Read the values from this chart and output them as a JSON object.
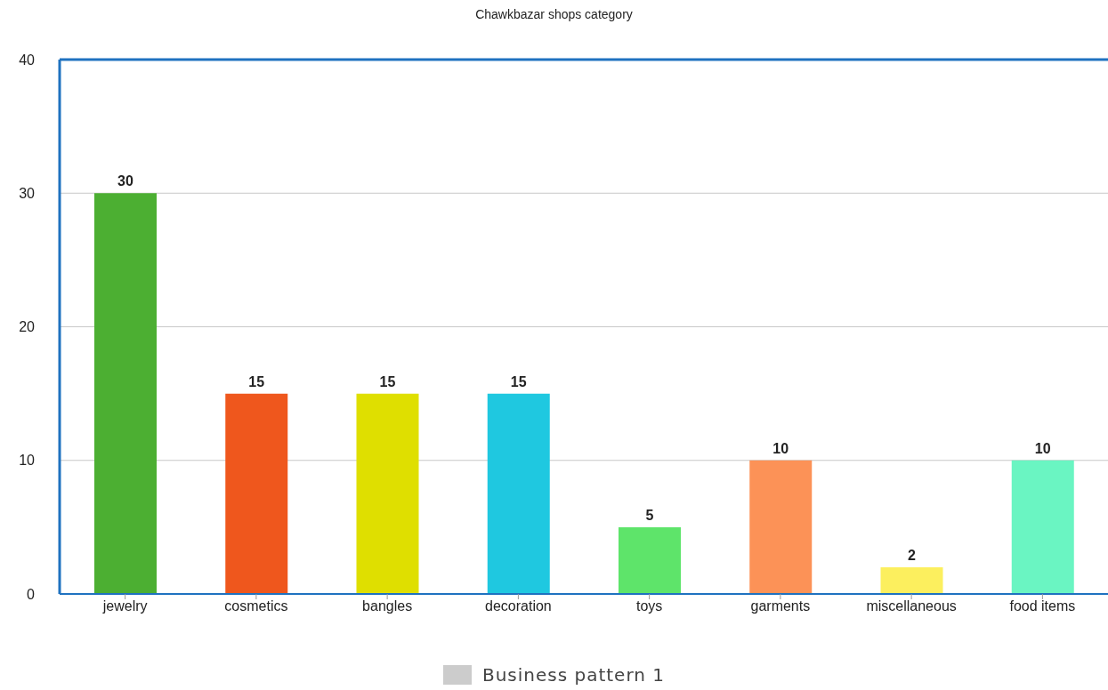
{
  "chart_data": {
    "type": "bar",
    "title": "Chawkbazar shops category",
    "categories": [
      "jewelry",
      "cosmetics",
      "bangles",
      "decoration",
      "toys",
      "garments",
      "miscellaneous",
      "food items"
    ],
    "series": [
      {
        "name": "Business pattern 1",
        "color": "#cccccc",
        "colors": [
          "#4caf32",
          "#ef571d",
          "#dfdf00",
          "#1fc8e0",
          "#5ee46a",
          "#fc9257",
          "#fcef5e",
          "#6af5c2"
        ],
        "values": [
          30,
          15,
          15,
          15,
          5,
          10,
          2,
          10
        ]
      }
    ],
    "ylim": [
      0,
      40
    ],
    "yticks": [
      0,
      10,
      20,
      30,
      40
    ],
    "grid": "y",
    "data_labels": true,
    "legend": "bottom"
  }
}
